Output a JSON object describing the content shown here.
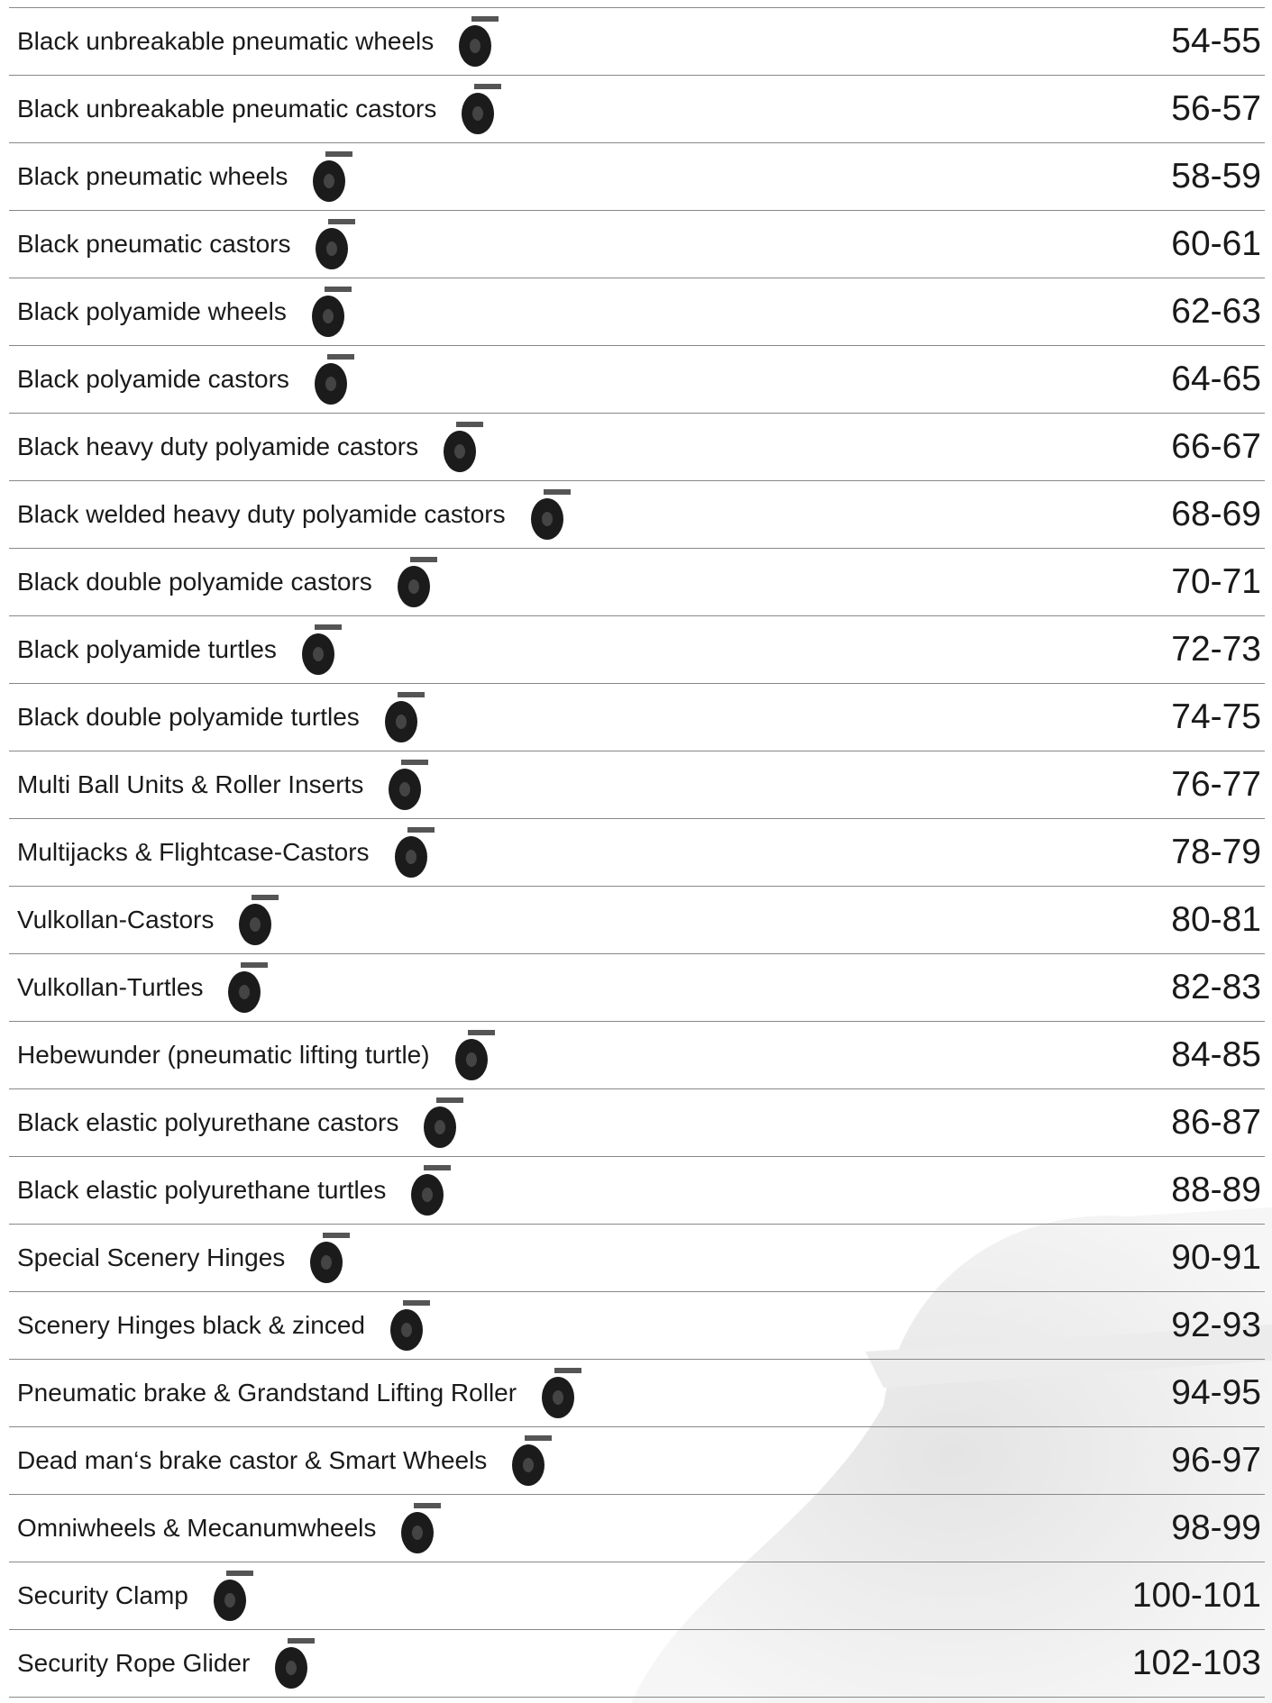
{
  "rows": [
    {
      "label": "Black unbreakable pneumatic wheels",
      "pages": "54-55"
    },
    {
      "label": "Black unbreakable pneumatic castors",
      "pages": "56-57"
    },
    {
      "label": "Black pneumatic wheels",
      "pages": "58-59"
    },
    {
      "label": "Black pneumatic castors",
      "pages": "60-61"
    },
    {
      "label": "Black polyamide wheels",
      "pages": "62-63"
    },
    {
      "label": "Black polyamide castors",
      "pages": "64-65"
    },
    {
      "label": "Black heavy duty polyamide castors",
      "pages": "66-67"
    },
    {
      "label": "Black welded heavy duty polyamide castors",
      "pages": "68-69"
    },
    {
      "label": "Black double polyamide castors",
      "pages": "70-71"
    },
    {
      "label": "Black polyamide turtles",
      "pages": "72-73"
    },
    {
      "label": "Black double polyamide turtles",
      "pages": "74-75"
    },
    {
      "label": "Multi Ball Units & Roller Inserts",
      "pages": "76-77"
    },
    {
      "label": "Multijacks & Flightcase-Castors",
      "pages": "78-79"
    },
    {
      "label": "Vulkollan-Castors",
      "pages": "80-81"
    },
    {
      "label": "Vulkollan-Turtles",
      "pages": "82-83"
    },
    {
      "label": "Hebewunder (pneumatic lifting turtle)",
      "pages": "84-85"
    },
    {
      "label": "Black elastic polyurethane castors",
      "pages": "86-87"
    },
    {
      "label": "Black elastic polyurethane turtles",
      "pages": "88-89"
    },
    {
      "label": "Special Scenery Hinges",
      "pages": "90-91"
    },
    {
      "label": "Scenery Hinges black & zinced",
      "pages": "92-93"
    },
    {
      "label": "Pneumatic brake & Grandstand Lifting Roller",
      "pages": "94-95"
    },
    {
      "label": "Dead man‘s brake castor & Smart Wheels",
      "pages": "96-97"
    },
    {
      "label": "Omniwheels & Mecanumwheels",
      "pages": "98-99"
    },
    {
      "label": "Security Clamp",
      "pages": "100-101"
    },
    {
      "label": "Security Rope Glider",
      "pages": "102-103"
    }
  ]
}
